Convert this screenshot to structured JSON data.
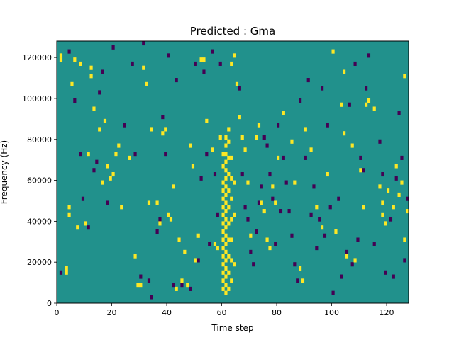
{
  "chart_data": {
    "type": "heatmap",
    "title": "Predicted : Gma",
    "xlabel": "Time step",
    "ylabel": "Frequency (Hz)",
    "xlim": [
      0,
      128
    ],
    "ylim": [
      0,
      128000
    ],
    "grid": false,
    "x_ticks": [
      0,
      20,
      40,
      60,
      80,
      100,
      120
    ],
    "x_tick_labels": [
      "0",
      "20",
      "40",
      "60",
      "80",
      "100",
      "120"
    ],
    "y_ticks": [
      0,
      20000,
      40000,
      60000,
      80000,
      100000,
      120000
    ],
    "y_tick_labels": [
      "0",
      "20000",
      "40000",
      "60000",
      "80000",
      "100000",
      "120000"
    ],
    "colormap": "viridis",
    "colors": {
      "background": "#21918c",
      "high": "#fde725",
      "low": "#440154"
    },
    "grid_size": {
      "time_steps": 128,
      "frequency_bins": 64,
      "bin_hz": 2000
    },
    "high_cells": [
      [
        1,
        120000
      ],
      [
        1,
        118000
      ],
      [
        3,
        16000
      ],
      [
        3,
        14000
      ],
      [
        4,
        46000
      ],
      [
        4,
        42000
      ],
      [
        5,
        106000
      ],
      [
        6,
        118000
      ],
      [
        7,
        36000
      ],
      [
        8,
        116000
      ],
      [
        10,
        38000
      ],
      [
        11,
        72000
      ],
      [
        12,
        114000
      ],
      [
        12,
        110000
      ],
      [
        13,
        94000
      ],
      [
        15,
        84000
      ],
      [
        16,
        58000
      ],
      [
        17,
        88000
      ],
      [
        18,
        66000
      ],
      [
        19,
        60000
      ],
      [
        20,
        62000
      ],
      [
        21,
        72000
      ],
      [
        22,
        76000
      ],
      [
        23,
        46000
      ],
      [
        26,
        70000
      ],
      [
        28,
        22000
      ],
      [
        29,
        8000
      ],
      [
        30,
        8000
      ],
      [
        31,
        114000
      ],
      [
        32,
        106000
      ],
      [
        33,
        48000
      ],
      [
        34,
        84000
      ],
      [
        36,
        48000
      ],
      [
        37,
        38000
      ],
      [
        38,
        82000
      ],
      [
        39,
        84000
      ],
      [
        40,
        42000
      ],
      [
        41,
        40000
      ],
      [
        42,
        56000
      ],
      [
        43,
        6000
      ],
      [
        44,
        30000
      ],
      [
        45,
        10000
      ],
      [
        46,
        24000
      ],
      [
        47,
        8000
      ],
      [
        48,
        76000
      ],
      [
        49,
        66000
      ],
      [
        50,
        20000
      ],
      [
        51,
        32000
      ],
      [
        52,
        118000
      ],
      [
        53,
        118000
      ],
      [
        54,
        88000
      ],
      [
        56,
        74000
      ],
      [
        57,
        28000
      ],
      [
        58,
        26000
      ],
      [
        59,
        80000
      ],
      [
        60,
        72000
      ],
      [
        60,
        66000
      ],
      [
        60,
        58000
      ],
      [
        60,
        54000
      ],
      [
        60,
        50000
      ],
      [
        60,
        46000
      ],
      [
        60,
        42000
      ],
      [
        60,
        38000
      ],
      [
        60,
        34000
      ],
      [
        60,
        30000
      ],
      [
        60,
        26000
      ],
      [
        60,
        22000
      ],
      [
        60,
        18000
      ],
      [
        60,
        14000
      ],
      [
        60,
        10000
      ],
      [
        60,
        6000
      ],
      [
        61,
        80000
      ],
      [
        61,
        76000
      ],
      [
        61,
        72000
      ],
      [
        61,
        68000
      ],
      [
        61,
        64000
      ],
      [
        61,
        60000
      ],
      [
        61,
        56000
      ],
      [
        61,
        52000
      ],
      [
        61,
        48000
      ],
      [
        61,
        44000
      ],
      [
        61,
        40000
      ],
      [
        61,
        36000
      ],
      [
        61,
        32000
      ],
      [
        61,
        28000
      ],
      [
        61,
        24000
      ],
      [
        61,
        20000
      ],
      [
        61,
        16000
      ],
      [
        61,
        12000
      ],
      [
        61,
        8000
      ],
      [
        61,
        4000
      ],
      [
        62,
        84000
      ],
      [
        62,
        78000
      ],
      [
        62,
        70000
      ],
      [
        62,
        62000
      ],
      [
        62,
        54000
      ],
      [
        62,
        46000
      ],
      [
        62,
        38000
      ],
      [
        62,
        30000
      ],
      [
        62,
        22000
      ],
      [
        62,
        14000
      ],
      [
        62,
        6000
      ],
      [
        63,
        116000
      ],
      [
        63,
        70000
      ],
      [
        63,
        60000
      ],
      [
        63,
        50000
      ],
      [
        63,
        40000
      ],
      [
        63,
        30000
      ],
      [
        63,
        20000
      ],
      [
        63,
        10000
      ],
      [
        64,
        120000
      ],
      [
        64,
        58000
      ],
      [
        64,
        42000
      ],
      [
        64,
        18000
      ],
      [
        65,
        106000
      ],
      [
        66,
        90000
      ],
      [
        67,
        80000
      ],
      [
        68,
        74000
      ],
      [
        69,
        58000
      ],
      [
        70,
        32000
      ],
      [
        72,
        80000
      ],
      [
        73,
        86000
      ],
      [
        74,
        48000
      ],
      [
        75,
        44000
      ],
      [
        76,
        30000
      ],
      [
        77,
        26000
      ],
      [
        78,
        56000
      ],
      [
        79,
        48000
      ],
      [
        80,
        70000
      ],
      [
        82,
        92000
      ],
      [
        85,
        78000
      ],
      [
        86,
        58000
      ],
      [
        88,
        16000
      ],
      [
        89,
        10000
      ],
      [
        90,
        84000
      ],
      [
        92,
        74000
      ],
      [
        94,
        46000
      ],
      [
        96,
        36000
      ],
      [
        98,
        62000
      ],
      [
        100,
        122000
      ],
      [
        101,
        34000
      ],
      [
        103,
        96000
      ],
      [
        104,
        82000
      ],
      [
        104,
        112000
      ],
      [
        105,
        22000
      ],
      [
        107,
        76000
      ],
      [
        108,
        20000
      ],
      [
        110,
        64000
      ],
      [
        111,
        46000
      ],
      [
        112,
        96000
      ],
      [
        113,
        98000
      ],
      [
        115,
        94000
      ],
      [
        117,
        56000
      ],
      [
        118,
        48000
      ],
      [
        118,
        42000
      ],
      [
        119,
        38000
      ],
      [
        120,
        54000
      ],
      [
        122,
        46000
      ],
      [
        123,
        66000
      ],
      [
        124,
        52000
      ],
      [
        125,
        58000
      ],
      [
        126,
        110000
      ],
      [
        126,
        30000
      ],
      [
        127,
        44000
      ]
    ],
    "low_cells": [
      [
        1,
        14000
      ],
      [
        4,
        122000
      ],
      [
        6,
        98000
      ],
      [
        8,
        72000
      ],
      [
        9,
        50000
      ],
      [
        11,
        36000
      ],
      [
        13,
        64000
      ],
      [
        14,
        68000
      ],
      [
        15,
        102000
      ],
      [
        16,
        112000
      ],
      [
        18,
        48000
      ],
      [
        20,
        124000
      ],
      [
        24,
        86000
      ],
      [
        27,
        116000
      ],
      [
        28,
        72000
      ],
      [
        30,
        12000
      ],
      [
        31,
        126000
      ],
      [
        33,
        10000
      ],
      [
        34,
        2000
      ],
      [
        36,
        34000
      ],
      [
        37,
        40000
      ],
      [
        38,
        90000
      ],
      [
        39,
        72000
      ],
      [
        40,
        120000
      ],
      [
        42,
        8000
      ],
      [
        43,
        108000
      ],
      [
        44,
        30000
      ],
      [
        45,
        8000
      ],
      [
        48,
        6000
      ],
      [
        50,
        116000
      ],
      [
        51,
        20000
      ],
      [
        52,
        60000
      ],
      [
        53,
        112000
      ],
      [
        54,
        72000
      ],
      [
        55,
        28000
      ],
      [
        56,
        122000
      ],
      [
        57,
        62000
      ],
      [
        58,
        42000
      ],
      [
        59,
        116000
      ],
      [
        66,
        104000
      ],
      [
        67,
        62000
      ],
      [
        68,
        46000
      ],
      [
        69,
        40000
      ],
      [
        70,
        24000
      ],
      [
        71,
        18000
      ],
      [
        72,
        34000
      ],
      [
        73,
        48000
      ],
      [
        74,
        56000
      ],
      [
        75,
        80000
      ],
      [
        76,
        76000
      ],
      [
        77,
        62000
      ],
      [
        78,
        50000
      ],
      [
        79,
        28000
      ],
      [
        80,
        86000
      ],
      [
        81,
        44000
      ],
      [
        82,
        70000
      ],
      [
        83,
        58000
      ],
      [
        84,
        44000
      ],
      [
        85,
        32000
      ],
      [
        86,
        18000
      ],
      [
        87,
        10000
      ],
      [
        88,
        98000
      ],
      [
        90,
        70000
      ],
      [
        91,
        108000
      ],
      [
        92,
        42000
      ],
      [
        93,
        56000
      ],
      [
        94,
        26000
      ],
      [
        95,
        40000
      ],
      [
        96,
        104000
      ],
      [
        97,
        32000
      ],
      [
        98,
        86000
      ],
      [
        99,
        46000
      ],
      [
        100,
        4000
      ],
      [
        102,
        50000
      ],
      [
        103,
        12000
      ],
      [
        105,
        24000
      ],
      [
        106,
        96000
      ],
      [
        107,
        18000
      ],
      [
        108,
        116000
      ],
      [
        109,
        30000
      ],
      [
        110,
        70000
      ],
      [
        111,
        64000
      ],
      [
        112,
        104000
      ],
      [
        113,
        120000
      ],
      [
        115,
        28000
      ],
      [
        117,
        78000
      ],
      [
        118,
        62000
      ],
      [
        119,
        14000
      ],
      [
        121,
        40000
      ],
      [
        122,
        12000
      ],
      [
        123,
        60000
      ],
      [
        124,
        92000
      ],
      [
        125,
        70000
      ],
      [
        126,
        20000
      ],
      [
        127,
        50000
      ]
    ]
  }
}
